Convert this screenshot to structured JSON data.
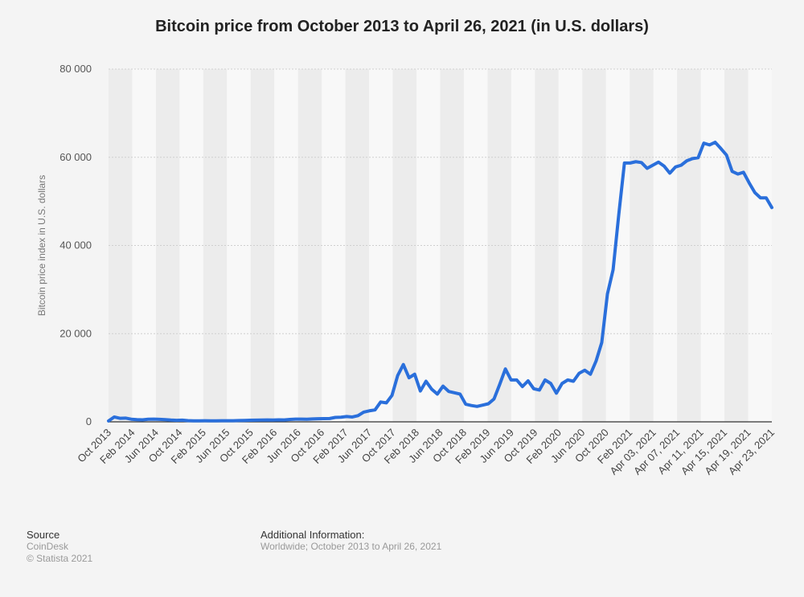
{
  "chart_data": {
    "type": "line",
    "title": "Bitcoin price from October 2013 to April 26, 2021 (in U.S. dollars)",
    "xlabel": "",
    "ylabel": "Bitcoin price index in U.S. dollars",
    "ylim": [
      0,
      80000
    ],
    "yticks": [
      0,
      20000,
      40000,
      60000,
      80000
    ],
    "ytick_labels": [
      "0",
      "20 000",
      "40 000",
      "60 000",
      "80 000"
    ],
    "grid": true,
    "color": "#2a6fdb",
    "xtick_labels": [
      "Oct 2013",
      "Feb 2014",
      "Jun 2014",
      "Oct 2014",
      "Feb 2015",
      "Jun 2015",
      "Oct 2015",
      "Feb 2016",
      "Jun 2016",
      "Oct 2016",
      "Feb 2017",
      "Jun 2017",
      "Oct 2017",
      "Feb 2018",
      "Jun 2018",
      "Oct 2018",
      "Feb 2019",
      "Jun 2019",
      "Oct 2019",
      "Feb 2020",
      "Jun 2020",
      "Oct 2020",
      "Feb 2021",
      "Apr 03, 2021",
      "Apr 07, 2021",
      "Apr 11, 2021",
      "Apr 15, 2021",
      "Apr 19, 2021",
      "Apr 23, 2021"
    ],
    "values": [
      200,
      1100,
      800,
      850,
      600,
      500,
      450,
      600,
      620,
      580,
      500,
      400,
      350,
      380,
      280,
      230,
      230,
      250,
      230,
      230,
      260,
      250,
      240,
      300,
      330,
      370,
      380,
      400,
      430,
      400,
      450,
      430,
      550,
      620,
      610,
      600,
      650,
      700,
      730,
      750,
      1000,
      1050,
      1200,
      1100,
      1400,
      2200,
      2500,
      2700,
      4500,
      4300,
      6000,
      10500,
      13000,
      10000,
      10800,
      7000,
      9200,
      7400,
      6300,
      8100,
      6900,
      6600,
      6300,
      4000,
      3700,
      3500,
      3800,
      4100,
      5200,
      8500,
      12000,
      9500,
      9500,
      8000,
      9300,
      7500,
      7200,
      9500,
      8700,
      6500,
      8700,
      9500,
      9200,
      11000,
      11700,
      10800,
      13800,
      18000,
      29000,
      34500,
      47000,
      58700,
      58700,
      59000,
      58800,
      57500,
      58200,
      58900,
      58000,
      56400,
      57800,
      58200,
      59200,
      59700,
      59900,
      63200,
      62800,
      63400,
      62000,
      60500,
      56800,
      56200,
      56600,
      54200,
      52000,
      50800,
      50800,
      48600
    ]
  },
  "footer": {
    "source_label": "Source",
    "source_name": "CoinDesk",
    "copyright": "© Statista 2021",
    "info_label": "Additional Information:",
    "info_text": "Worldwide; October 2013 to April 26, 2021"
  }
}
